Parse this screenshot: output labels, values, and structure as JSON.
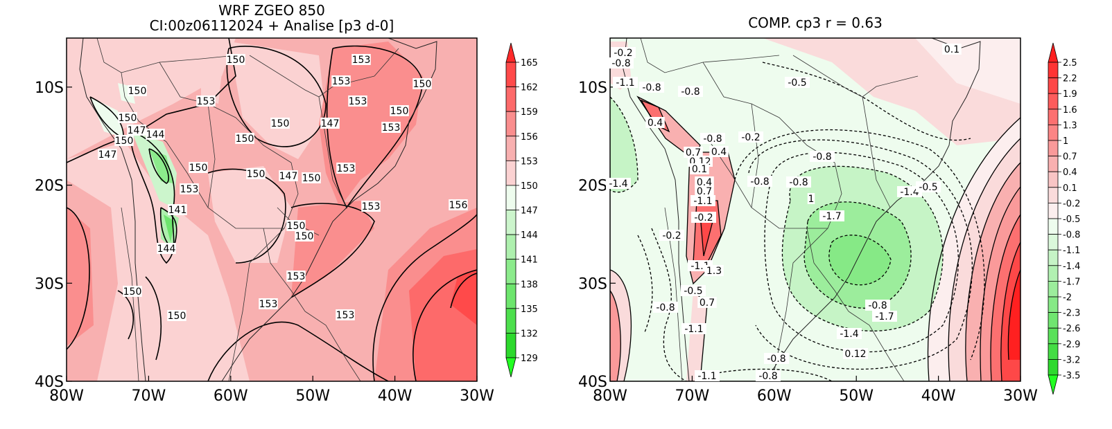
{
  "left_panel": {
    "title_line1": "WRF ZGEO 850",
    "title_line2": "CI:00z06112024 + Analise  [p3 d-0]",
    "x_ticks": [
      "80W",
      "70W",
      "60W",
      "50W",
      "40W",
      "30W"
    ],
    "y_ticks": [
      "10S",
      "20S",
      "30S",
      "40S"
    ],
    "colorbar": {
      "labels": [
        "165",
        "162",
        "159",
        "156",
        "153",
        "150",
        "147",
        "144",
        "141",
        "138",
        "135",
        "132",
        "129"
      ],
      "colors": [
        "#ff2a2a",
        "#ff4a4a",
        "#fd6a6a",
        "#fa8e8e",
        "#f8b0b0",
        "#fbd2d2",
        "#eefcee",
        "#ccf5cc",
        "#aef0ae",
        "#8ceb8c",
        "#6de56d",
        "#4ddf4d",
        "#2dd92d",
        "#22ff22"
      ]
    },
    "contour_labels": [
      "150",
      "153",
      "150",
      "153",
      "150",
      "153",
      "153",
      "150",
      "150",
      "147",
      "153",
      "147",
      "144",
      "150",
      "150",
      "150",
      "147",
      "150",
      "153",
      "150",
      "153",
      "156",
      "147",
      "141",
      "150",
      "150",
      "144",
      "153",
      "150",
      "153",
      "153",
      "150",
      "150",
      "153"
    ]
  },
  "right_panel": {
    "title": "COMP. cp3  r =  0.63",
    "x_ticks": [
      "80W",
      "70W",
      "60W",
      "50W",
      "40W",
      "30W"
    ],
    "y_ticks": [
      "10S",
      "20S",
      "30S",
      "40S"
    ],
    "colorbar": {
      "labels": [
        "2.5",
        "2.2",
        "1.9",
        "1.6",
        "1.3",
        "1",
        "0.7",
        "0.4",
        "0.1",
        "-0.2",
        "-0.5",
        "-0.8",
        "-1.1",
        "-1.4",
        "-1.7",
        "-2",
        "-2.3",
        "-2.6",
        "-2.9",
        "-3.2",
        "-3.5"
      ],
      "colors": [
        "#ff2020",
        "#ff3434",
        "#fe4848",
        "#fd5c5c",
        "#fc7070",
        "#fb8585",
        "#fa9a9a",
        "#f9b0b0",
        "#f9c5c5",
        "#fadbdb",
        "#fceeee",
        "#eefcee",
        "#dbf8db",
        "#c6f4c6",
        "#b1f0b1",
        "#9ced9c",
        "#86e986",
        "#70e570",
        "#5ae15a",
        "#44dd44",
        "#2ed92e",
        "#22ff22"
      ]
    },
    "contour_labels": [
      "-0.2",
      "0.1",
      "-0.8",
      "-1.1",
      "-0.8",
      "-0.8",
      "-0.5",
      "-0.2",
      "0.4",
      "-0.8",
      "-0.8",
      "0.7",
      "0.4",
      "0.12",
      "-0.8",
      "0.1",
      "0.4",
      "-1.4",
      "0.7",
      "-0.8",
      "-1.1",
      "1",
      "-1.4",
      "-0.5",
      "-0.2",
      "-1.7",
      "-0.2",
      "-1.1",
      "1.3",
      "-0.5",
      "0.7",
      "-0.8",
      "-0.8",
      "-1.7",
      "-1.4",
      "-1.1",
      "0.12",
      "-0.8",
      "-1.1",
      "-0.8"
    ]
  }
}
